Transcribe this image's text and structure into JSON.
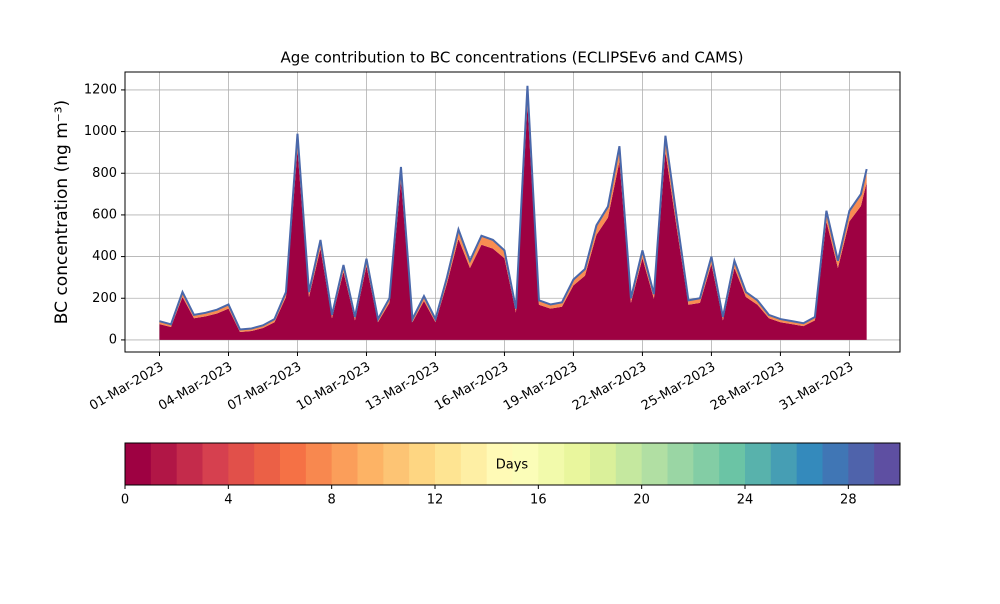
{
  "chart_data": {
    "type": "stacked-area",
    "title": "Age contribution to BC concentrations (ECLIPSEv6 and CAMS)",
    "y_label": "BC concentration (ng m⁻³)",
    "x": [
      0,
      0.5,
      1,
      1.5,
      2,
      2.5,
      3,
      3.5,
      4,
      4.5,
      5,
      5.5,
      6,
      6.5,
      7,
      7.5,
      8,
      8.5,
      9,
      9.5,
      10,
      10.5,
      11,
      11.5,
      12,
      12.5,
      13,
      13.5,
      14,
      14.5,
      15,
      15.5,
      16,
      16.5,
      17,
      17.5,
      18,
      18.5,
      19,
      19.5,
      20,
      20.5,
      21,
      21.5,
      22,
      22.5,
      23,
      23.5,
      24,
      24.5,
      25,
      25.5,
      26,
      26.5,
      27,
      27.5,
      28,
      28.5,
      29,
      29.5,
      30,
      30.5,
      30.75
    ],
    "series": [
      {
        "color": "#9e0142",
        "values": [
          76,
          62,
          206,
          104,
          113,
          127,
          150,
          38,
          43,
          57,
          85,
          206,
          913,
          206,
          438,
          104,
          327,
          94,
          355,
          85,
          178,
          764,
          85,
          187,
          85,
          271,
          485,
          345,
          457,
          438,
          392,
          131,
          1127,
          169,
          150,
          159,
          262,
          308,
          504,
          587,
          857,
          178,
          392,
          197,
          903,
          531,
          169,
          178,
          364,
          94,
          345,
          206,
          169,
          104,
          85,
          76,
          66,
          94,
          569,
          345,
          569,
          643,
          755
        ]
      },
      {
        "color": "#f88d52",
        "line_color": "#4a68aa",
        "values": [
          14,
          13,
          24,
          16,
          17,
          18,
          20,
          12,
          12,
          13,
          15,
          24,
          77,
          24,
          42,
          16,
          33,
          16,
          35,
          15,
          22,
          66,
          15,
          23,
          15,
          29,
          45,
          35,
          43,
          42,
          38,
          19,
          93,
          21,
          20,
          21,
          28,
          32,
          46,
          53,
          73,
          22,
          38,
          23,
          77,
          49,
          21,
          22,
          36,
          16,
          35,
          24,
          21,
          16,
          15,
          14,
          14,
          16,
          51,
          35,
          51,
          57,
          65
        ]
      }
    ],
    "xlim": [
      -1.5,
      32.2
    ],
    "xticks": [
      {
        "value": 0,
        "label": "01-Mar-2023"
      },
      {
        "value": 3,
        "label": "04-Mar-2023"
      },
      {
        "value": 6,
        "label": "07-Mar-2023"
      },
      {
        "value": 9,
        "label": "10-Mar-2023"
      },
      {
        "value": 12,
        "label": "13-Mar-2023"
      },
      {
        "value": 15,
        "label": "16-Mar-2023"
      },
      {
        "value": 18,
        "label": "19-Mar-2023"
      },
      {
        "value": 21,
        "label": "22-Mar-2023"
      },
      {
        "value": 24,
        "label": "25-Mar-2023"
      },
      {
        "value": 27,
        "label": "28-Mar-2023"
      },
      {
        "value": 30,
        "label": "31-Mar-2023"
      }
    ],
    "ylim": [
      -58,
      1286
    ],
    "yticks": [
      0,
      200,
      400,
      600,
      800,
      1000,
      1200
    ],
    "grid": true,
    "colorbar": {
      "label": "Days",
      "lim": [
        0,
        30
      ],
      "ticks": [
        0,
        4,
        8,
        12,
        16,
        20,
        24,
        28
      ],
      "colors": [
        "#9e0142",
        "#d53e4f",
        "#f46d43",
        "#fdae61",
        "#fee08b",
        "#ffffbf",
        "#e6f598",
        "#abdda4",
        "#66c2a5",
        "#3288bd",
        "#5e4fa2"
      ]
    }
  }
}
